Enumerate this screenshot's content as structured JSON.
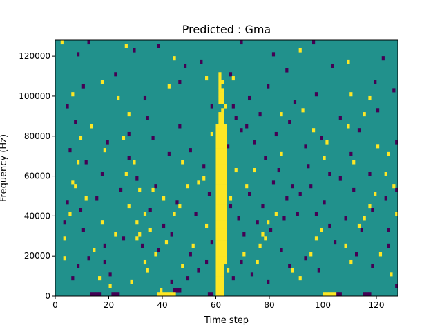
{
  "chart_data": {
    "type": "heatmap",
    "title": "Predicted : Gma",
    "xlabel": "Time step",
    "ylabel": "Frequency (Hz)",
    "xlim": [
      0,
      128
    ],
    "ylim": [
      0,
      128000
    ],
    "x_ticks": [
      0,
      20,
      40,
      60,
      80,
      100,
      120
    ],
    "y_ticks": [
      0,
      20000,
      40000,
      60000,
      80000,
      100000,
      120000
    ],
    "y_tick_labels": [
      "0",
      "20000",
      "40000",
      "60000",
      "80000",
      "100000",
      "120000"
    ],
    "colormap": "viridis",
    "levels": {
      "low": "#440154",
      "mid": "#21918c",
      "high": "#fde725"
    },
    "background_level": "mid",
    "grid": false,
    "rows": 64,
    "cols": 128,
    "cell_height_hz": 2000,
    "high_cells": [
      [
        60,
        0
      ],
      [
        61,
        0
      ],
      [
        62,
        0
      ],
      [
        60,
        1
      ],
      [
        61,
        1
      ],
      [
        62,
        1
      ],
      [
        60,
        2
      ],
      [
        61,
        2
      ],
      [
        62,
        2
      ],
      [
        60,
        3
      ],
      [
        61,
        3
      ],
      [
        62,
        3
      ],
      [
        60,
        4
      ],
      [
        61,
        4
      ],
      [
        62,
        4
      ],
      [
        60,
        5
      ],
      [
        61,
        5
      ],
      [
        62,
        5
      ],
      [
        60,
        6
      ],
      [
        61,
        6
      ],
      [
        62,
        6
      ],
      [
        60,
        7
      ],
      [
        61,
        7
      ],
      [
        62,
        7
      ],
      [
        60,
        8
      ],
      [
        61,
        8
      ],
      [
        62,
        8
      ],
      [
        63,
        8
      ],
      [
        60,
        9
      ],
      [
        61,
        9
      ],
      [
        62,
        9
      ],
      [
        63,
        9
      ],
      [
        60,
        10
      ],
      [
        61,
        10
      ],
      [
        62,
        10
      ],
      [
        63,
        10
      ],
      [
        60,
        11
      ],
      [
        61,
        11
      ],
      [
        62,
        11
      ],
      [
        63,
        11
      ],
      [
        60,
        12
      ],
      [
        61,
        12
      ],
      [
        62,
        12
      ],
      [
        63,
        12
      ],
      [
        60,
        13
      ],
      [
        61,
        13
      ],
      [
        62,
        13
      ],
      [
        63,
        13
      ],
      [
        60,
        14
      ],
      [
        61,
        14
      ],
      [
        62,
        14
      ],
      [
        63,
        14
      ],
      [
        60,
        15
      ],
      [
        61,
        15
      ],
      [
        62,
        15
      ],
      [
        63,
        15
      ],
      [
        60,
        16
      ],
      [
        61,
        16
      ],
      [
        62,
        16
      ],
      [
        63,
        16
      ],
      [
        60,
        17
      ],
      [
        61,
        17
      ],
      [
        62,
        17
      ],
      [
        63,
        17
      ],
      [
        60,
        18
      ],
      [
        61,
        18
      ],
      [
        62,
        18
      ],
      [
        63,
        18
      ],
      [
        60,
        19
      ],
      [
        61,
        19
      ],
      [
        62,
        19
      ],
      [
        63,
        19
      ],
      [
        60,
        20
      ],
      [
        61,
        20
      ],
      [
        62,
        20
      ],
      [
        63,
        20
      ],
      [
        60,
        21
      ],
      [
        61,
        21
      ],
      [
        62,
        21
      ],
      [
        63,
        21
      ],
      [
        60,
        22
      ],
      [
        61,
        22
      ],
      [
        62,
        22
      ],
      [
        63,
        22
      ],
      [
        60,
        23
      ],
      [
        61,
        23
      ],
      [
        62,
        23
      ],
      [
        63,
        23
      ],
      [
        60,
        24
      ],
      [
        61,
        24
      ],
      [
        62,
        24
      ],
      [
        63,
        24
      ],
      [
        60,
        25
      ],
      [
        61,
        25
      ],
      [
        62,
        25
      ],
      [
        63,
        25
      ],
      [
        60,
        26
      ],
      [
        61,
        26
      ],
      [
        62,
        26
      ],
      [
        63,
        26
      ],
      [
        60,
        27
      ],
      [
        61,
        27
      ],
      [
        62,
        27
      ],
      [
        63,
        27
      ],
      [
        60,
        28
      ],
      [
        61,
        28
      ],
      [
        62,
        28
      ],
      [
        63,
        28
      ],
      [
        60,
        29
      ],
      [
        61,
        29
      ],
      [
        62,
        29
      ],
      [
        63,
        29
      ],
      [
        60,
        30
      ],
      [
        61,
        30
      ],
      [
        62,
        30
      ],
      [
        63,
        30
      ],
      [
        60,
        31
      ],
      [
        61,
        31
      ],
      [
        62,
        31
      ],
      [
        63,
        31
      ],
      [
        60,
        32
      ],
      [
        61,
        32
      ],
      [
        62,
        32
      ],
      [
        63,
        32
      ],
      [
        60,
        33
      ],
      [
        61,
        33
      ],
      [
        62,
        33
      ],
      [
        63,
        33
      ],
      [
        60,
        34
      ],
      [
        61,
        34
      ],
      [
        62,
        34
      ],
      [
        63,
        34
      ],
      [
        60,
        35
      ],
      [
        61,
        35
      ],
      [
        62,
        35
      ],
      [
        63,
        35
      ],
      [
        60,
        36
      ],
      [
        61,
        36
      ],
      [
        62,
        36
      ],
      [
        63,
        36
      ],
      [
        60,
        37
      ],
      [
        61,
        37
      ],
      [
        62,
        37
      ],
      [
        63,
        37
      ],
      [
        60,
        38
      ],
      [
        61,
        38
      ],
      [
        62,
        38
      ],
      [
        63,
        38
      ],
      [
        60,
        39
      ],
      [
        61,
        39
      ],
      [
        62,
        39
      ],
      [
        63,
        39
      ],
      [
        60,
        40
      ],
      [
        61,
        40
      ],
      [
        62,
        40
      ],
      [
        63,
        40
      ],
      [
        60,
        41
      ],
      [
        61,
        41
      ],
      [
        62,
        41
      ],
      [
        63,
        41
      ],
      [
        60,
        42
      ],
      [
        61,
        42
      ],
      [
        62,
        42
      ],
      [
        63,
        42
      ],
      [
        61,
        43
      ],
      [
        62,
        43
      ],
      [
        61,
        44
      ],
      [
        62,
        44
      ],
      [
        61,
        45
      ],
      [
        62,
        45
      ],
      [
        62,
        46
      ],
      [
        63,
        47
      ],
      [
        61,
        48
      ],
      [
        62,
        48
      ],
      [
        61,
        49
      ],
      [
        62,
        49
      ],
      [
        61,
        50
      ],
      [
        62,
        50
      ],
      [
        61,
        51
      ],
      [
        62,
        51
      ],
      [
        61,
        52
      ],
      [
        61,
        53
      ],
      [
        62,
        53
      ],
      [
        61,
        54
      ],
      [
        61,
        55
      ],
      [
        38,
        0
      ],
      [
        39,
        0
      ],
      [
        40,
        0
      ],
      [
        41,
        0
      ],
      [
        42,
        0
      ],
      [
        43,
        0
      ],
      [
        44,
        0
      ],
      [
        100,
        0
      ],
      [
        101,
        0
      ],
      [
        102,
        0
      ],
      [
        103,
        0
      ],
      [
        104,
        0
      ],
      [
        20,
        2
      ],
      [
        28,
        3
      ],
      [
        39,
        1
      ],
      [
        3,
        9
      ],
      [
        14,
        11
      ],
      [
        30,
        14
      ],
      [
        31,
        15
      ],
      [
        33,
        8
      ],
      [
        35,
        16
      ],
      [
        41,
        13
      ],
      [
        47,
        7
      ],
      [
        17,
        18
      ],
      [
        11,
        24
      ],
      [
        6,
        28
      ],
      [
        26,
        30
      ],
      [
        29,
        33
      ],
      [
        36,
        26
      ],
      [
        44,
        20
      ],
      [
        51,
        12
      ],
      [
        56,
        17
      ],
      [
        64,
        6
      ],
      [
        70,
        10
      ],
      [
        75,
        8
      ],
      [
        76,
        12
      ],
      [
        77,
        15
      ],
      [
        78,
        14
      ],
      [
        79,
        18
      ],
      [
        82,
        20
      ],
      [
        88,
        6
      ],
      [
        91,
        4
      ],
      [
        95,
        10
      ],
      [
        97,
        14
      ],
      [
        99,
        16
      ],
      [
        108,
        12
      ],
      [
        110,
        8
      ],
      [
        113,
        17
      ],
      [
        115,
        19
      ],
      [
        117,
        22
      ],
      [
        119,
        25
      ],
      [
        123,
        30
      ],
      [
        125,
        5
      ],
      [
        121,
        10
      ],
      [
        127,
        20
      ],
      [
        2,
        63
      ],
      [
        26,
        62
      ],
      [
        44,
        59
      ],
      [
        17,
        53
      ],
      [
        6,
        50
      ],
      [
        23,
        49
      ],
      [
        27,
        45
      ],
      [
        13,
        42
      ],
      [
        42,
        52
      ],
      [
        56,
        54
      ],
      [
        66,
        54
      ],
      [
        91,
        61
      ],
      [
        92,
        46
      ],
      [
        110,
        50
      ],
      [
        115,
        45
      ],
      [
        117,
        49
      ],
      [
        120,
        37
      ],
      [
        124,
        35
      ],
      [
        109,
        42
      ],
      [
        101,
        38
      ],
      [
        96,
        41
      ],
      [
        84,
        35
      ],
      [
        74,
        31
      ],
      [
        71,
        27
      ],
      [
        65,
        24
      ],
      [
        58,
        40
      ],
      [
        55,
        29
      ],
      [
        53,
        28
      ],
      [
        47,
        33
      ],
      [
        46,
        22
      ],
      [
        40,
        24
      ],
      [
        33,
        20
      ],
      [
        31,
        26
      ],
      [
        25,
        39
      ],
      [
        18,
        36
      ],
      [
        9,
        39
      ],
      [
        8,
        33
      ],
      [
        7,
        27
      ],
      [
        5,
        20
      ],
      [
        3,
        14
      ],
      [
        27,
        22
      ],
      [
        30,
        18
      ],
      [
        34,
        6
      ],
      [
        37,
        10
      ],
      [
        16,
        4
      ],
      [
        22,
        15
      ],
      [
        49,
        27
      ],
      [
        67,
        31
      ],
      [
        84,
        45
      ],
      [
        100,
        34
      ],
      [
        109,
        58
      ],
      [
        111,
        33
      ],
      [
        126,
        27
      ]
    ],
    "low_cells": [
      [
        13,
        0
      ],
      [
        14,
        0
      ],
      [
        15,
        0
      ],
      [
        16,
        0
      ],
      [
        21,
        0
      ],
      [
        22,
        0
      ],
      [
        23,
        0
      ],
      [
        44,
        1
      ],
      [
        45,
        1
      ],
      [
        46,
        1
      ],
      [
        57,
        0
      ],
      [
        58,
        0
      ],
      [
        105,
        0
      ],
      [
        106,
        0
      ],
      [
        115,
        0
      ],
      [
        116,
        0
      ],
      [
        117,
        0
      ],
      [
        127,
        2
      ],
      [
        20,
        5
      ],
      [
        6,
        4
      ],
      [
        8,
        7
      ],
      [
        12,
        9
      ],
      [
        18,
        8
      ],
      [
        32,
        12
      ],
      [
        38,
        11
      ],
      [
        43,
        15
      ],
      [
        50,
        10
      ],
      [
        53,
        6
      ],
      [
        58,
        13
      ],
      [
        66,
        4
      ],
      [
        69,
        8
      ],
      [
        73,
        5
      ],
      [
        79,
        3
      ],
      [
        84,
        11
      ],
      [
        87,
        7
      ],
      [
        93,
        9
      ],
      [
        98,
        6
      ],
      [
        104,
        13
      ],
      [
        112,
        10
      ],
      [
        118,
        7
      ],
      [
        124,
        12
      ],
      [
        3,
        18
      ],
      [
        9,
        21
      ],
      [
        15,
        24
      ],
      [
        24,
        26
      ],
      [
        30,
        29
      ],
      [
        37,
        27
      ],
      [
        45,
        23
      ],
      [
        52,
        20
      ],
      [
        57,
        25
      ],
      [
        65,
        22
      ],
      [
        68,
        19
      ],
      [
        72,
        25
      ],
      [
        77,
        22
      ],
      [
        81,
        28
      ],
      [
        86,
        24
      ],
      [
        90,
        20
      ],
      [
        95,
        27
      ],
      [
        100,
        23
      ],
      [
        106,
        29
      ],
      [
        111,
        26
      ],
      [
        117,
        30
      ],
      [
        123,
        24
      ],
      [
        127,
        26
      ],
      [
        5,
        36
      ],
      [
        11,
        33
      ],
      [
        19,
        38
      ],
      [
        27,
        34
      ],
      [
        36,
        39
      ],
      [
        42,
        35
      ],
      [
        50,
        36
      ],
      [
        55,
        32
      ],
      [
        64,
        37
      ],
      [
        69,
        41
      ],
      [
        74,
        38
      ],
      [
        82,
        40
      ],
      [
        87,
        43
      ],
      [
        93,
        37
      ],
      [
        99,
        39
      ],
      [
        106,
        44
      ],
      [
        113,
        41
      ],
      [
        120,
        46
      ],
      [
        126,
        51
      ],
      [
        4,
        47
      ],
      [
        10,
        52
      ],
      [
        22,
        55
      ],
      [
        33,
        49
      ],
      [
        46,
        53
      ],
      [
        54,
        58
      ],
      [
        67,
        44
      ],
      [
        72,
        49
      ],
      [
        79,
        52
      ],
      [
        86,
        56
      ],
      [
        97,
        50
      ],
      [
        103,
        57
      ],
      [
        119,
        53
      ],
      [
        8,
        60
      ],
      [
        12,
        63
      ],
      [
        29,
        61
      ],
      [
        38,
        62
      ],
      [
        48,
        57
      ],
      [
        69,
        63
      ],
      [
        81,
        60
      ],
      [
        96,
        63
      ],
      [
        122,
        59
      ],
      [
        34,
        44
      ],
      [
        46,
        42
      ],
      [
        27,
        40
      ],
      [
        17,
        30
      ],
      [
        7,
        43
      ],
      [
        58,
        47
      ],
      [
        65,
        55
      ],
      [
        76,
        45
      ],
      [
        89,
        48
      ],
      [
        110,
        35
      ],
      [
        102,
        30
      ],
      [
        94,
        32
      ],
      [
        88,
        27
      ],
      [
        83,
        31
      ],
      [
        78,
        34
      ],
      [
        71,
        42
      ],
      [
        66,
        47
      ],
      [
        40,
        17
      ],
      [
        35,
        21
      ],
      [
        25,
        14
      ],
      [
        18,
        12
      ],
      [
        10,
        16
      ],
      [
        4,
        23
      ],
      [
        124,
        16
      ],
      [
        127,
        38
      ],
      [
        118,
        21
      ],
      [
        114,
        16
      ],
      [
        108,
        19
      ],
      [
        102,
        17
      ],
      [
        97,
        20
      ],
      [
        91,
        25
      ],
      [
        85,
        19
      ],
      [
        80,
        16
      ],
      [
        75,
        18
      ],
      [
        70,
        15
      ],
      [
        63,
        13
      ],
      [
        56,
        8
      ],
      [
        49,
        4
      ],
      [
        43,
        3
      ]
    ]
  }
}
